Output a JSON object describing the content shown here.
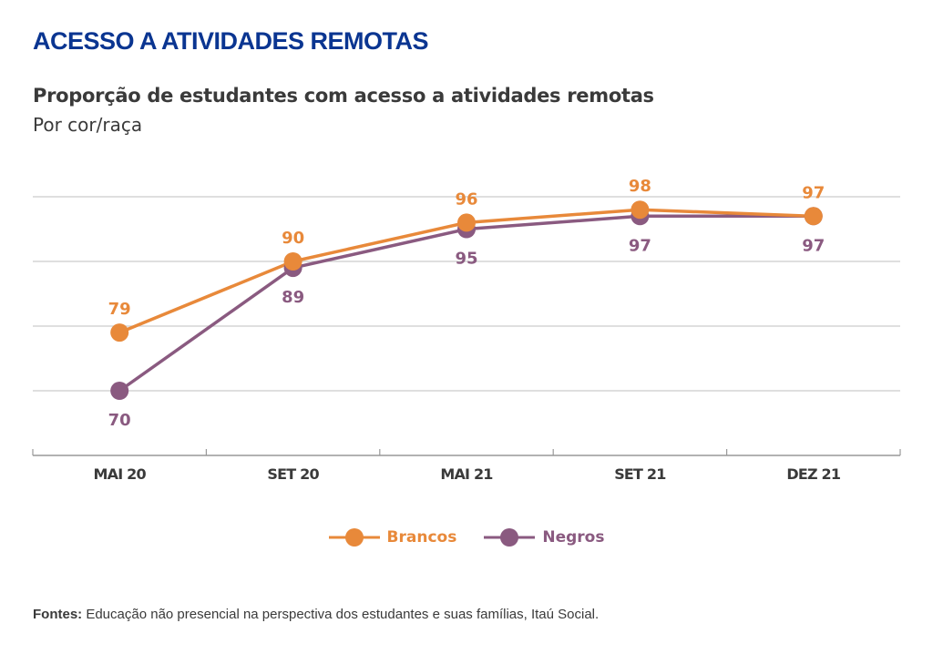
{
  "header": {
    "title": "ACESSO A ATIVIDADES REMOTAS"
  },
  "chart_data": {
    "type": "line",
    "title": "Proporção de estudantes com acesso a atividades remotas",
    "subtitle": "Por cor/raça",
    "categories": [
      "MAI 20",
      "SET 20",
      "MAI 21",
      "SET 21",
      "DEZ 21"
    ],
    "series": [
      {
        "name": "Brancos",
        "color": "#e8893a",
        "values": [
          79,
          90,
          96,
          98,
          97
        ]
      },
      {
        "name": "Negros",
        "color": "#8a5a80",
        "values": [
          70,
          89,
          95,
          97,
          97
        ]
      }
    ],
    "xlabel": "",
    "ylabel": "",
    "ylim": [
      60,
      100
    ],
    "gridlines": [
      70,
      80,
      90,
      100
    ],
    "grid": true,
    "legend_position": "bottom-center"
  },
  "footer": {
    "label": "Fontes:",
    "text": " Educação não presencial na perspectiva dos estudantes e suas famílias, Itaú Social."
  },
  "colors": {
    "title": "#0a3591",
    "text": "#3a3a3a",
    "grid": "#cccccc"
  }
}
